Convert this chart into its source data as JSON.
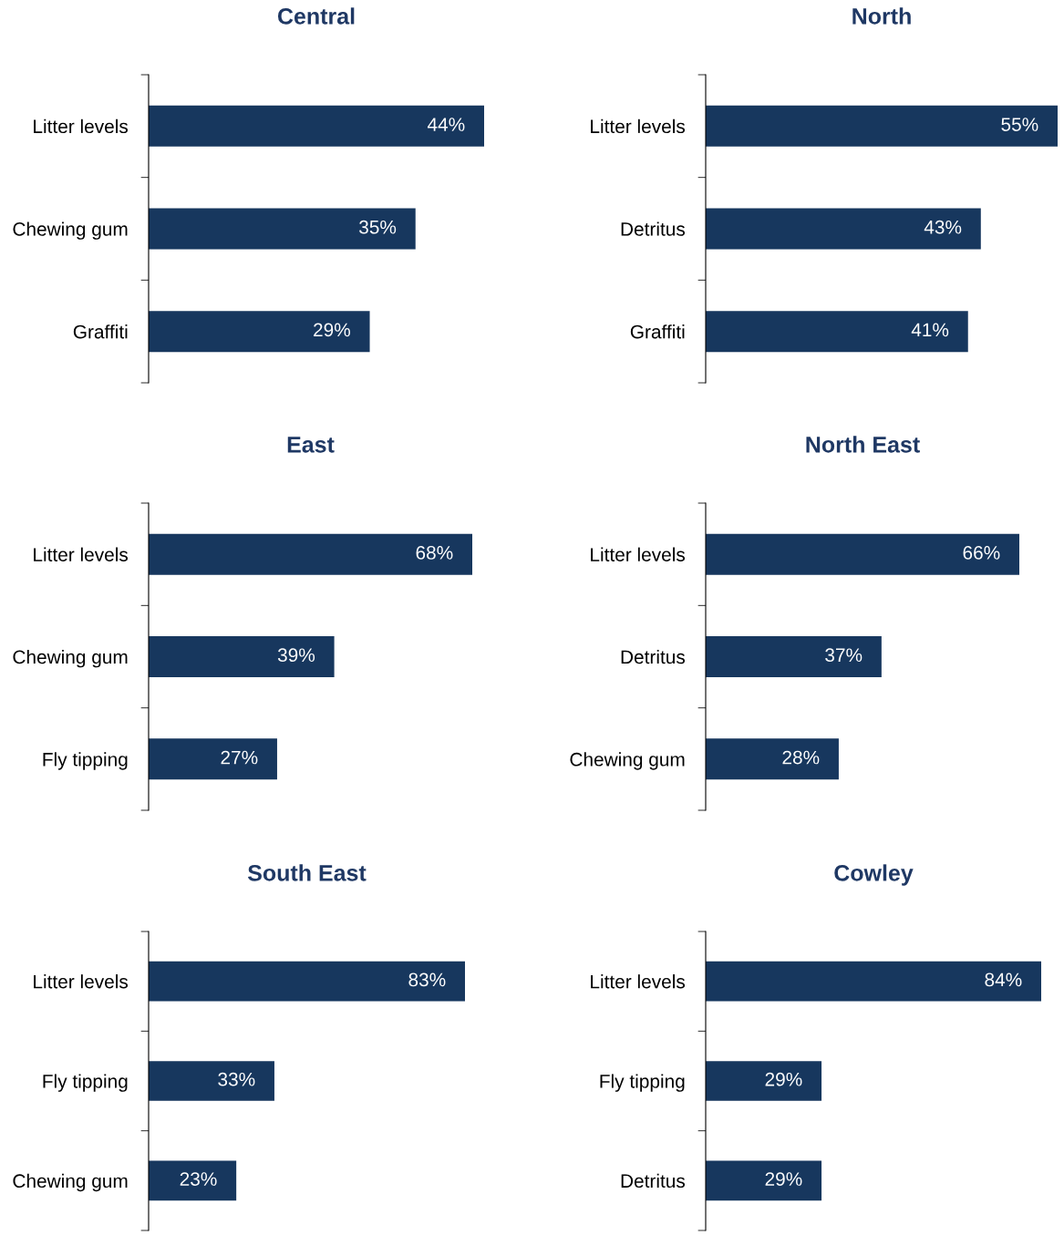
{
  "chart_data": [
    {
      "type": "bar",
      "orientation": "horizontal",
      "title": "Central",
      "categories": [
        "Litter levels",
        "Chewing gum",
        "Graffiti"
      ],
      "values": [
        44,
        35,
        29
      ],
      "value_labels": [
        "44%",
        "35%",
        "29%"
      ],
      "color": "#17375e",
      "tick_labels": "y",
      "grid": false,
      "legend": false
    },
    {
      "type": "bar",
      "orientation": "horizontal",
      "title": "North",
      "categories": [
        "Litter levels",
        "Detritus",
        "Graffiti"
      ],
      "values": [
        55,
        43,
        41
      ],
      "value_labels": [
        "55%",
        "43%",
        "41%"
      ],
      "color": "#17375e",
      "tick_labels": "y",
      "grid": false,
      "legend": false
    },
    {
      "type": "bar",
      "orientation": "horizontal",
      "title": "East",
      "categories": [
        "Litter levels",
        "Chewing gum",
        "Fly tipping"
      ],
      "values": [
        68,
        39,
        27
      ],
      "value_labels": [
        "68%",
        "39%",
        "27%"
      ],
      "color": "#17375e",
      "tick_labels": "y",
      "grid": false,
      "legend": false
    },
    {
      "type": "bar",
      "orientation": "horizontal",
      "title": "North East",
      "categories": [
        "Litter levels",
        "Detritus",
        "Chewing gum"
      ],
      "values": [
        66,
        37,
        28
      ],
      "value_labels": [
        "66%",
        "37%",
        "28%"
      ],
      "color": "#17375e",
      "tick_labels": "y",
      "grid": false,
      "legend": false
    },
    {
      "type": "bar",
      "orientation": "horizontal",
      "title": "South East",
      "categories": [
        "Litter levels",
        "Fly tipping",
        "Chewing gum"
      ],
      "values": [
        83,
        33,
        23
      ],
      "value_labels": [
        "83%",
        "33%",
        "23%"
      ],
      "color": "#17375e",
      "tick_labels": "y",
      "grid": false,
      "legend": false
    },
    {
      "type": "bar",
      "orientation": "horizontal",
      "title": "Cowley",
      "categories": [
        "Litter levels",
        "Fly tipping",
        "Detritus"
      ],
      "values": [
        84,
        29,
        29
      ],
      "value_labels": [
        "84%",
        "29%",
        "29%"
      ],
      "color": "#17375e",
      "tick_labels": "y",
      "grid": false,
      "legend": false
    }
  ]
}
